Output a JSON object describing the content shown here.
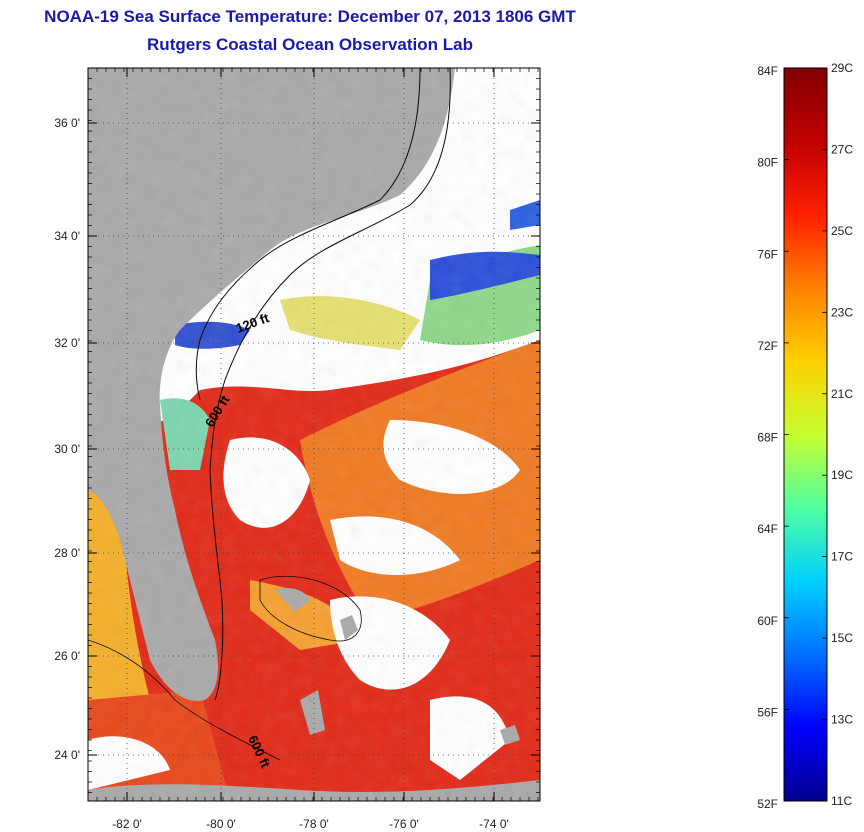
{
  "title": "NOAA-19 Sea Surface Temperature:  December 07, 2013 1806 GMT",
  "subtitle": "Rutgers Coastal Ocean Observation Lab",
  "map": {
    "lat_labels": [
      "36 0'",
      "34 0'",
      "32 0'",
      "30 0'",
      "28 0'",
      "26 0'",
      "24 0'"
    ],
    "lon_labels": [
      "-82 0'",
      "-80 0'",
      "-78 0'",
      "-76 0'",
      "-74 0'"
    ],
    "contour_labels": [
      "120 ft",
      "600 ft",
      "600 ft"
    ],
    "colors": {
      "land": "#a9a9a9",
      "cloud": "#ffffff",
      "water_warm": "#e8281a",
      "water_hot": "#d91810",
      "water_mid": "#f0701e",
      "water_cool": "#f8c830",
      "water_cold": "#2a48d8"
    }
  },
  "colorbar": {
    "fahrenheit": [
      "84F",
      "80F",
      "76F",
      "72F",
      "68F",
      "64F",
      "60F",
      "56F",
      "52F"
    ],
    "celsius": [
      "29C",
      "27C",
      "25C",
      "23C",
      "21C",
      "19C",
      "17C",
      "15C",
      "13C",
      "11C"
    ],
    "scale": [
      "#00008f",
      "#0000ff",
      "#0070ff",
      "#00d0ff",
      "#50ffa0",
      "#c8ff30",
      "#ffd000",
      "#ff8000",
      "#ff2000",
      "#c00000",
      "#800000"
    ]
  }
}
